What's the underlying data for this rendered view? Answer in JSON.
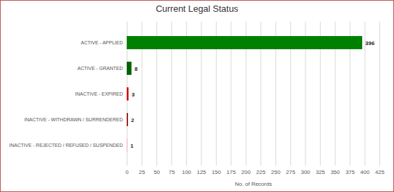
{
  "chart_data": {
    "type": "bar",
    "orientation": "horizontal",
    "title": "Current Legal Status",
    "categories": [
      "ACTIVE - APPLIED",
      "ACTIVE - GRANTED",
      "INACTIVE - EXPIRED",
      "INACTIVE - WITHDRAWN / SURRENDERED",
      "INACTIVE - REJECTED / REFUSED / SUSPENDED"
    ],
    "values": [
      396,
      8,
      3,
      2,
      1
    ],
    "colors": [
      "#008000",
      "#006400",
      "#d00000",
      "#8b0000",
      "#f0a0a0"
    ],
    "xlabel": "No. of Records",
    "xlim": [
      0,
      425
    ],
    "xticks": [
      0,
      25,
      50,
      75,
      100,
      125,
      150,
      175,
      200,
      225,
      250,
      275,
      300,
      325,
      350,
      375,
      400,
      425
    ],
    "grid": true,
    "data_labels": true
  }
}
